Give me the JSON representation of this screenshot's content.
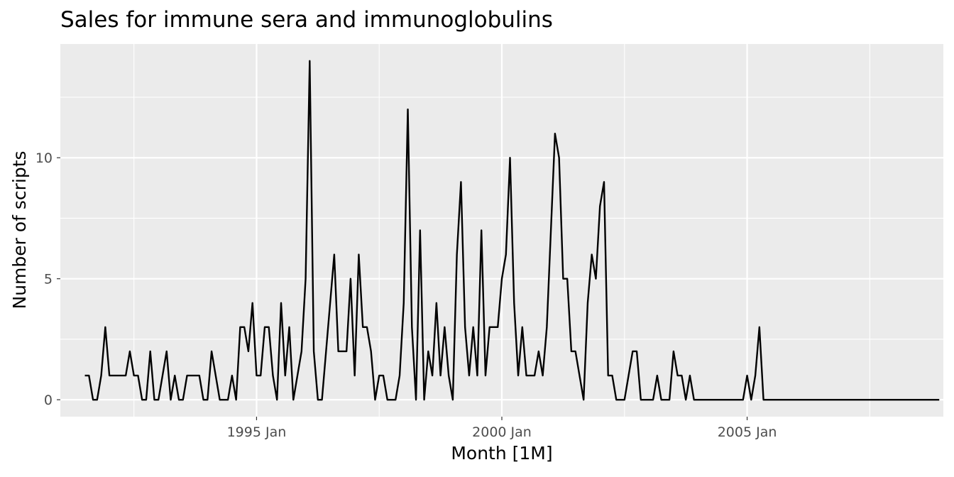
{
  "chart_data": {
    "type": "line",
    "title": "Sales for immune sera and immunoglobulins",
    "xlabel": "Month [1M]",
    "ylabel": "Number of scripts",
    "x_start": "1991 Jul",
    "x_frequency": "1 month",
    "x_ticks": [
      {
        "label": "1995 Jan",
        "value": "1995-01"
      },
      {
        "label": "2000 Jan",
        "value": "2000-01"
      },
      {
        "label": "2005 Jan",
        "value": "2005-01"
      }
    ],
    "y_ticks": [
      {
        "label": "0",
        "value": 0
      },
      {
        "label": "5",
        "value": 5
      },
      {
        "label": "10",
        "value": 10
      }
    ],
    "xlim": [
      "1991-01",
      "2009-01"
    ],
    "ylim": [
      -0.7,
      14.7
    ],
    "grid": true,
    "legend": "none",
    "line_color": "#000000",
    "panel_color": "#ebebeb",
    "series": [
      {
        "values": [
          1,
          1,
          0,
          0,
          1,
          3,
          1,
          1,
          1,
          1,
          1,
          2,
          1,
          1,
          0,
          0,
          2,
          0,
          0,
          1,
          2,
          0,
          1,
          0,
          0,
          1,
          1,
          1,
          1,
          0,
          0,
          2,
          1,
          0,
          0,
          0,
          1,
          0,
          3,
          3,
          2,
          4,
          1,
          1,
          3,
          3,
          1,
          0,
          4,
          1,
          3,
          0,
          1,
          2,
          5,
          14,
          2,
          0,
          0,
          2,
          4,
          6,
          2,
          2,
          2,
          5,
          1,
          6,
          3,
          3,
          2,
          0,
          1,
          1,
          0,
          0,
          0,
          1,
          4,
          12,
          3,
          0,
          7,
          0,
          2,
          1,
          4,
          1,
          3,
          1,
          0,
          6,
          9,
          3,
          1,
          3,
          1,
          7,
          1,
          3,
          3,
          3,
          5,
          6,
          10,
          4,
          1,
          3,
          1,
          1,
          1,
          2,
          1,
          3,
          7,
          11,
          10,
          5,
          5,
          2,
          2,
          1,
          0,
          4,
          6,
          5,
          8,
          9,
          1,
          1,
          0,
          0,
          0,
          1,
          2,
          2,
          0,
          0,
          0,
          0,
          1,
          0,
          0,
          0,
          2,
          1,
          1,
          0,
          1,
          0,
          0,
          0,
          0,
          0,
          0,
          0,
          0,
          0,
          0,
          0,
          0,
          0,
          1,
          0,
          1,
          3,
          0,
          0,
          0,
          0,
          0,
          0,
          0,
          0,
          0,
          0,
          0,
          0,
          0,
          0,
          0,
          0,
          0,
          0,
          0,
          0,
          0,
          0,
          0,
          0,
          0,
          0,
          0,
          0,
          0,
          0,
          0,
          0,
          0,
          0,
          0,
          0,
          0,
          0,
          0,
          0,
          0,
          0,
          0,
          0
        ]
      }
    ]
  }
}
